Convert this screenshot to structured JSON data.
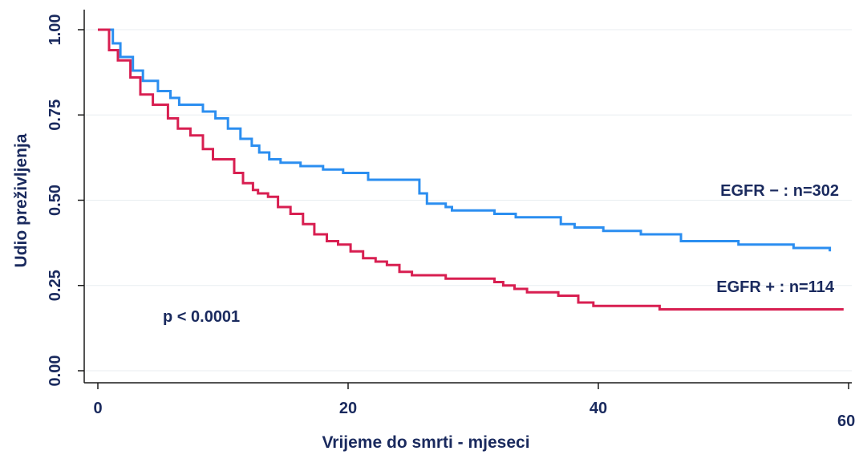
{
  "chart_data": {
    "type": "line",
    "title": "",
    "xlabel": "Vrijeme do smrti - mjeseci",
    "ylabel": "Udio preživljenja",
    "xlim": [
      0,
      60
    ],
    "ylim": [
      0,
      1
    ],
    "x_ticks": [
      0,
      20,
      40,
      60
    ],
    "x_tick_labels": [
      "0",
      "20",
      "40",
      "60"
    ],
    "y_ticks": [
      0,
      0.25,
      0.5,
      0.75,
      1.0
    ],
    "y_tick_labels": [
      "0.00",
      "0.25",
      "0.50",
      "0.75",
      "1.00"
    ],
    "grid": "horizontal",
    "step": true,
    "series": [
      {
        "name": "EGFR − : n=302",
        "color": "#2b8ef0",
        "x": [
          0,
          1.2,
          1.8,
          2.8,
          3.6,
          4.8,
          5.8,
          6.5,
          8.4,
          9.4,
          10.4,
          11.4,
          12.3,
          12.9,
          13.7,
          14.6,
          15.3,
          16.2,
          18.0,
          19.6,
          21.6,
          25.7,
          26.3,
          27.8,
          28.3,
          31.7,
          33.4,
          37.0,
          38.1,
          40.4,
          43.4,
          46.6,
          51.2,
          55.6,
          58.5
        ],
        "y": [
          1.0,
          0.96,
          0.92,
          0.88,
          0.85,
          0.82,
          0.8,
          0.78,
          0.76,
          0.74,
          0.71,
          0.68,
          0.66,
          0.64,
          0.62,
          0.61,
          0.61,
          0.6,
          0.59,
          0.58,
          0.56,
          0.52,
          0.49,
          0.48,
          0.47,
          0.46,
          0.45,
          0.43,
          0.42,
          0.41,
          0.4,
          0.38,
          0.37,
          0.36,
          0.35
        ]
      },
      {
        "name": "EGFR + : n=114",
        "color": "#d81f51",
        "x": [
          0,
          0.9,
          1.6,
          2.6,
          3.4,
          4.4,
          5.6,
          6.4,
          7.4,
          8.4,
          9.2,
          10.9,
          11.6,
          12.4,
          12.8,
          13.6,
          14.4,
          15.4,
          16.4,
          17.3,
          18.3,
          19.2,
          20.2,
          21.2,
          22.2,
          23.1,
          24.1,
          25.1,
          26.3,
          27.8,
          31.7,
          32.4,
          33.3,
          34.3,
          36.8,
          38.4,
          39.6,
          44.9,
          46.4,
          59.6
        ],
        "y": [
          1.0,
          0.94,
          0.91,
          0.86,
          0.81,
          0.78,
          0.74,
          0.71,
          0.69,
          0.65,
          0.62,
          0.58,
          0.55,
          0.53,
          0.52,
          0.51,
          0.48,
          0.46,
          0.43,
          0.4,
          0.38,
          0.37,
          0.35,
          0.33,
          0.32,
          0.31,
          0.29,
          0.28,
          0.28,
          0.27,
          0.26,
          0.25,
          0.24,
          0.23,
          0.22,
          0.2,
          0.19,
          0.18,
          0.18,
          0.18
        ]
      }
    ],
    "annotations": [
      {
        "text": "EGFR − : n=302",
        "series": 0
      },
      {
        "text": "EGFR + : n=114",
        "series": 1
      },
      {
        "text": "p < 0.0001"
      }
    ]
  }
}
